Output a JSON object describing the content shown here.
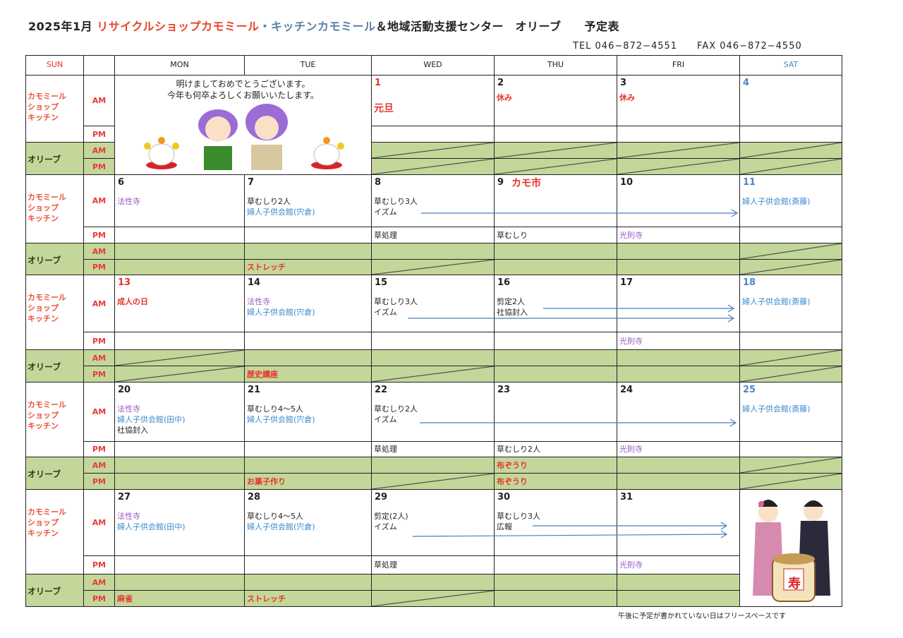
{
  "title": {
    "month": "2025年1月",
    "shop": "リサイクルショップカモミール",
    "kitchen": "・キッチンカモミール",
    "rest": "＆地域活動支援センター　オリーブ　　予定表"
  },
  "contact": {
    "tel": "TEL 046−872−4551",
    "fax": "FAX 046−872−4550"
  },
  "headers": [
    "SUN",
    "",
    "MON",
    "TUE",
    "WED",
    "THU",
    "FRI",
    "SAT"
  ],
  "colors": {
    "sun": "#e8322a",
    "sat": "#4a86c5",
    "olive_bg": "#c4d79b",
    "kamo_label": "#e8533a",
    "arrow": "#4a7ebb"
  },
  "row_labels": {
    "kamo": "カモミール\nショップ\nキッチン",
    "olive": "オリーブ",
    "am": "AM",
    "pm": "PM"
  },
  "greeting": {
    "line1": "明けましておめでとうございます。",
    "line2": "今年も何卒よろしくお願いいたします。"
  },
  "weeks": [
    {
      "dates": [
        null,
        null,
        "1",
        "2",
        "3",
        "4"
      ],
      "date_colors": [
        null,
        null,
        "red",
        "black",
        "black",
        "blue"
      ],
      "date_notes": [
        null,
        null,
        null,
        null,
        null,
        null
      ],
      "kamo_am": [
        [],
        [],
        [
          {
            "t": "元旦",
            "c": "red"
          }
        ],
        [
          {
            "t": "休み",
            "c": "red"
          }
        ],
        [
          {
            "t": "休み",
            "c": "red"
          }
        ],
        []
      ],
      "kamo_pm": [
        [],
        [],
        [],
        [],
        [],
        []
      ],
      "olive_am": [
        [],
        [],
        [],
        [],
        [],
        []
      ],
      "olive_pm": [
        [],
        [],
        [],
        [],
        [],
        []
      ],
      "olive_am_closed": [
        false,
        false,
        true,
        true,
        true,
        true
      ],
      "olive_pm_closed": [
        false,
        false,
        true,
        true,
        true,
        true
      ]
    },
    {
      "dates": [
        "6",
        "7",
        "8",
        "9",
        "10",
        "11"
      ],
      "date_colors": [
        "black",
        "black",
        "black",
        "black",
        "black",
        "blue"
      ],
      "date_notes": [
        null,
        null,
        null,
        "カモ市",
        null,
        null
      ],
      "kamo_am": [
        [
          {
            "t": "法性寺",
            "c": "purple"
          }
        ],
        [
          {
            "t": "草むしり2人",
            "c": "black"
          },
          {
            "t": "婦人子供会館(宍倉)",
            "c": "blue"
          }
        ],
        [
          {
            "t": "草むしり3人",
            "c": "black"
          },
          {
            "t": "イズム",
            "c": "black"
          }
        ],
        [],
        [],
        [
          {
            "t": "婦人子供会館(斎藤)",
            "c": "blue"
          }
        ]
      ],
      "kamo_pm": [
        [],
        [],
        [
          {
            "t": "草処理",
            "c": "black"
          }
        ],
        [
          {
            "t": "草むしり",
            "c": "black"
          }
        ],
        [
          {
            "t": "光則寺",
            "c": "purple"
          }
        ],
        []
      ],
      "olive_am": [
        [],
        [],
        [],
        [],
        [],
        []
      ],
      "olive_pm": [
        [],
        [
          {
            "t": "ストレッチ",
            "c": "red"
          }
        ],
        [],
        [],
        [],
        []
      ],
      "olive_am_closed": [
        false,
        false,
        false,
        false,
        false,
        true
      ],
      "olive_pm_closed": [
        false,
        false,
        true,
        false,
        false,
        true
      ]
    },
    {
      "dates": [
        "13",
        "14",
        "15",
        "16",
        "17",
        "18"
      ],
      "date_colors": [
        "red",
        "black",
        "black",
        "black",
        "black",
        "blue"
      ],
      "date_notes": [
        null,
        null,
        null,
        null,
        null,
        null
      ],
      "kamo_am": [
        [
          {
            "t": "成人の日",
            "c": "red"
          }
        ],
        [
          {
            "t": "法性寺",
            "c": "purple"
          },
          {
            "t": "婦人子供会館(宍倉)",
            "c": "blue"
          }
        ],
        [
          {
            "t": "草むしり3人",
            "c": "black"
          },
          {
            "t": "イズム",
            "c": "black"
          }
        ],
        [
          {
            "t": "剪定2人",
            "c": "black"
          },
          {
            "t": "社協封入",
            "c": "black"
          }
        ],
        [],
        [
          {
            "t": "婦人子供会館(斎藤)",
            "c": "blue"
          }
        ]
      ],
      "kamo_pm": [
        [],
        [],
        [],
        [],
        [
          {
            "t": "光則寺",
            "c": "purple"
          }
        ],
        []
      ],
      "olive_am": [
        [],
        [],
        [],
        [],
        [],
        []
      ],
      "olive_pm": [
        [],
        [
          {
            "t": "歴史講座",
            "c": "red"
          }
        ],
        [],
        [],
        [],
        []
      ],
      "olive_am_closed": [
        true,
        false,
        false,
        false,
        false,
        true
      ],
      "olive_pm_closed": [
        true,
        false,
        true,
        false,
        false,
        true
      ]
    },
    {
      "dates": [
        "20",
        "21",
        "22",
        "23",
        "24",
        "25"
      ],
      "date_colors": [
        "black",
        "black",
        "black",
        "black",
        "black",
        "blue"
      ],
      "date_notes": [
        null,
        null,
        null,
        null,
        null,
        null
      ],
      "kamo_am": [
        [
          {
            "t": "法性寺",
            "c": "purple"
          },
          {
            "t": "婦人子供会館(田中)",
            "c": "blue"
          },
          {
            "t": "社協封入",
            "c": "black"
          }
        ],
        [
          {
            "t": "草むしり4〜5人",
            "c": "black"
          },
          {
            "t": "婦人子供会館(宍倉)",
            "c": "blue"
          }
        ],
        [
          {
            "t": "草むしり2人",
            "c": "black"
          },
          {
            "t": "イズム",
            "c": "black"
          }
        ],
        [],
        [],
        [
          {
            "t": "婦人子供会館(斎藤)",
            "c": "blue"
          }
        ]
      ],
      "kamo_pm": [
        [],
        [],
        [
          {
            "t": "草処理",
            "c": "black"
          }
        ],
        [
          {
            "t": "草むしり2人",
            "c": "black"
          }
        ],
        [
          {
            "t": "光則寺",
            "c": "purple"
          }
        ],
        []
      ],
      "olive_am": [
        [],
        [],
        [],
        [
          {
            "t": "布ぞうり",
            "c": "red"
          }
        ],
        [],
        []
      ],
      "olive_pm": [
        [],
        [
          {
            "t": "お菓子作り",
            "c": "red"
          }
        ],
        [],
        [
          {
            "t": "布ぞうり",
            "c": "red"
          }
        ],
        [],
        []
      ],
      "olive_am_closed": [
        false,
        false,
        false,
        false,
        false,
        true
      ],
      "olive_pm_closed": [
        false,
        false,
        true,
        false,
        false,
        true
      ]
    },
    {
      "dates": [
        "27",
        "28",
        "29",
        "30",
        "31",
        null
      ],
      "date_colors": [
        "black",
        "black",
        "black",
        "black",
        "black",
        null
      ],
      "date_notes": [
        null,
        null,
        null,
        null,
        null,
        null
      ],
      "kamo_am": [
        [
          {
            "t": "法性寺",
            "c": "purple"
          },
          {
            "t": "婦人子供会館(田中)",
            "c": "blue"
          }
        ],
        [
          {
            "t": "草むしり4〜5人",
            "c": "black"
          },
          {
            "t": "婦人子供会館(宍倉)",
            "c": "blue"
          }
        ],
        [
          {
            "t": "剪定(2人)",
            "c": "black"
          },
          {
            "t": "イズム",
            "c": "black"
          }
        ],
        [
          {
            "t": "草むしり3人",
            "c": "black"
          },
          {
            "t": "広報",
            "c": "black"
          }
        ],
        [],
        []
      ],
      "kamo_pm": [
        [],
        [],
        [
          {
            "t": "草処理",
            "c": "black"
          }
        ],
        [],
        [
          {
            "t": "光則寺",
            "c": "purple"
          }
        ],
        []
      ],
      "olive_am": [
        [],
        [],
        [],
        [],
        [],
        []
      ],
      "olive_pm": [
        [
          {
            "t": "麻雀",
            "c": "red"
          }
        ],
        [
          {
            "t": "ストレッチ",
            "c": "red"
          }
        ],
        [],
        [],
        [],
        []
      ],
      "olive_am_closed": [
        false,
        false,
        false,
        false,
        false,
        false
      ],
      "olive_pm_closed": [
        false,
        false,
        true,
        false,
        false,
        false
      ]
    }
  ],
  "barrel_label": "寿",
  "footer_note": "午後に予定が書かれていない日はフリースペースです"
}
